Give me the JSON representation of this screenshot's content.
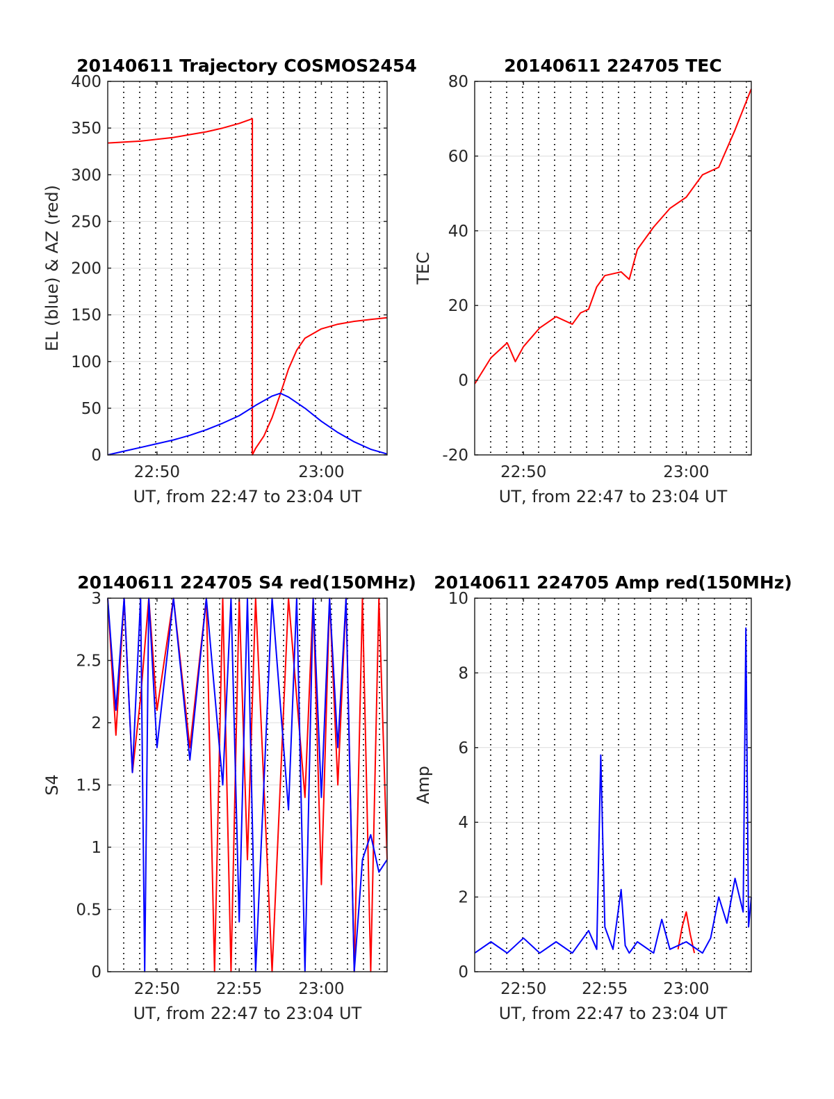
{
  "colors": {
    "red": "#ff0000",
    "blue": "#0000ff",
    "grid": "#dcdcdc",
    "axis": "#262626"
  },
  "chart_data": [
    {
      "type": "line",
      "title": "20140611 Trajectory COSMOS2454",
      "xlabel": "UT, from 22:47 to 23:04 UT",
      "ylabel": "EL (blue) & AZ (red)",
      "xlim": [
        "22:47:00",
        "23:04:00"
      ],
      "ylim": [
        0,
        400
      ],
      "xticks": [
        "22:50",
        "23:00"
      ],
      "yticks": [
        "0",
        "50",
        "100",
        "150",
        "200",
        "250",
        "300",
        "350",
        "400"
      ],
      "grid": "on",
      "series": [
        {
          "color": "red",
          "x": [
            "22:47:00",
            "22:48:00",
            "22:49:00",
            "22:50:00",
            "22:51:00",
            "22:52:00",
            "22:53:00",
            "22:54:00",
            "22:55:00",
            "22:55:48",
            "22:55:48",
            "22:56:00",
            "22:56:30",
            "22:57:00",
            "22:57:30",
            "22:58:00",
            "22:58:30",
            "22:59:00",
            "23:00:00",
            "23:01:00",
            "23:02:00",
            "23:03:00",
            "23:04:00"
          ],
          "values": [
            334,
            335,
            336,
            338,
            340,
            343,
            346,
            350,
            355,
            360,
            0,
            7,
            20,
            40,
            65,
            92,
            112,
            125,
            135,
            140,
            143,
            145,
            147
          ]
        },
        {
          "color": "blue",
          "x": [
            "22:47:00",
            "22:48:00",
            "22:49:00",
            "22:50:00",
            "22:51:00",
            "22:52:00",
            "22:53:00",
            "22:54:00",
            "22:55:00",
            "22:56:00",
            "22:57:00",
            "22:57:30",
            "22:58:00",
            "22:59:00",
            "23:00:00",
            "23:01:00",
            "23:02:00",
            "23:03:00",
            "23:04:00"
          ],
          "values": [
            0,
            4,
            8,
            12,
            16,
            21,
            27,
            34,
            42,
            53,
            63,
            66,
            62,
            50,
            36,
            24,
            14,
            6,
            1
          ]
        }
      ]
    },
    {
      "type": "line",
      "title": "20140611 224705 TEC",
      "xlabel": "UT, from 22:47 to 23:04 UT",
      "ylabel": "TEC",
      "xlim": [
        "22:47:00",
        "23:04:00"
      ],
      "ylim": [
        -20,
        80
      ],
      "xticks": [
        "22:50",
        "23:00"
      ],
      "yticks": [
        "-20",
        "0",
        "20",
        "40",
        "60",
        "80"
      ],
      "grid": "on",
      "series": [
        {
          "color": "red",
          "x": [
            "22:47:00",
            "22:48:00",
            "22:49:00",
            "22:49:30",
            "22:50:00",
            "22:51:00",
            "22:52:00",
            "22:53:00",
            "22:53:30",
            "22:54:00",
            "22:54:30",
            "22:55:00",
            "22:56:00",
            "22:56:30",
            "22:57:00",
            "22:58:00",
            "22:59:00",
            "23:00:00",
            "23:01:00",
            "23:02:00",
            "23:03:00",
            "23:04:00"
          ],
          "values": [
            -1,
            6,
            10,
            5,
            9,
            14,
            17,
            15,
            18,
            19,
            25,
            28,
            29,
            27,
            35,
            41,
            46,
            49,
            55,
            57,
            67,
            78
          ]
        }
      ]
    },
    {
      "type": "line",
      "title": "20140611 224705 S4 red(150MHz)",
      "xlabel": "UT, from 22:47 to 23:04 UT",
      "ylabel": "S4",
      "xlim": [
        "22:47:00",
        "23:04:00"
      ],
      "ylim": [
        0,
        3
      ],
      "xticks": [
        "22:50",
        "22:55",
        "23:00"
      ],
      "yticks": [
        "0",
        "0.5",
        "1",
        "1.5",
        "2",
        "2.5",
        "3"
      ],
      "grid": "on",
      "series": [
        {
          "color": "red",
          "x": [
            "22:47:00",
            "22:47:30",
            "22:48:00",
            "22:48:30",
            "22:49:00",
            "22:49:30",
            "22:50:00",
            "22:51:00",
            "22:52:00",
            "22:53:00",
            "22:53:30",
            "22:54:00",
            "22:54:30",
            "22:55:00",
            "22:55:30",
            "22:56:00",
            "22:57:00",
            "22:58:00",
            "22:59:00",
            "22:59:30",
            "23:00:00",
            "23:00:30",
            "23:01:00",
            "23:01:30",
            "23:02:00",
            "23:02:30",
            "23:03:00",
            "23:03:30",
            "23:04:00"
          ],
          "values": [
            3,
            1.9,
            3,
            1.6,
            2.2,
            3,
            2.1,
            3,
            1.8,
            3,
            0,
            3,
            0,
            3,
            0.9,
            3,
            0,
            3,
            1.4,
            3,
            0.7,
            3,
            1.5,
            3,
            0,
            3,
            0,
            3,
            0.9
          ]
        },
        {
          "color": "blue",
          "x": [
            "22:47:00",
            "22:47:30",
            "22:48:00",
            "22:48:30",
            "22:49:00",
            "22:49:15",
            "22:49:30",
            "22:50:00",
            "22:51:00",
            "22:52:00",
            "22:53:00",
            "22:54:00",
            "22:54:30",
            "22:55:00",
            "22:55:30",
            "22:56:00",
            "22:57:00",
            "22:58:00",
            "22:58:30",
            "22:59:00",
            "22:59:30",
            "23:00:00",
            "23:00:30",
            "23:01:00",
            "23:01:30",
            "23:02:00",
            "23:02:30",
            "23:03:00",
            "23:03:30",
            "23:04:00"
          ],
          "values": [
            3,
            2.1,
            3,
            1.6,
            3,
            0,
            3,
            1.8,
            3,
            1.7,
            3,
            1.5,
            3,
            0.4,
            3,
            0,
            3,
            1.3,
            3,
            0,
            3,
            1.4,
            3,
            1.8,
            3,
            0,
            0.9,
            1.1,
            0.8,
            0.9
          ]
        }
      ]
    },
    {
      "type": "line",
      "title": "20140611 224705 Amp red(150MHz)",
      "xlabel": "UT, from 22:47 to 23:04 UT",
      "ylabel": "Amp",
      "xlim": [
        "22:47:00",
        "23:04:00"
      ],
      "ylim": [
        0,
        10
      ],
      "xticks": [
        "22:50",
        "22:55",
        "23:00"
      ],
      "yticks": [
        "0",
        "2",
        "4",
        "6",
        "8",
        "10"
      ],
      "grid": "on",
      "series": [
        {
          "color": "red",
          "x": [
            "22:59:30",
            "22:59:45",
            "23:00:00",
            "23:00:15",
            "23:00:30"
          ],
          "values": [
            0.6,
            1.2,
            1.6,
            1.0,
            0.5
          ]
        },
        {
          "color": "blue",
          "x": [
            "22:47:00",
            "22:48:00",
            "22:49:00",
            "22:50:00",
            "22:51:00",
            "22:52:00",
            "22:53:00",
            "22:54:00",
            "22:54:30",
            "22:54:45",
            "22:55:00",
            "22:55:30",
            "22:56:00",
            "22:56:15",
            "22:56:30",
            "22:57:00",
            "22:58:00",
            "22:58:30",
            "22:59:00",
            "23:00:00",
            "23:01:00",
            "23:01:30",
            "23:02:00",
            "23:02:30",
            "23:03:00",
            "23:03:30",
            "23:03:40",
            "23:03:50",
            "23:04:00"
          ],
          "values": [
            0.5,
            0.8,
            0.5,
            0.9,
            0.5,
            0.8,
            0.5,
            1.1,
            0.6,
            5.8,
            1.2,
            0.6,
            2.2,
            0.7,
            0.5,
            0.8,
            0.5,
            1.4,
            0.6,
            0.8,
            0.5,
            0.9,
            2.0,
            1.3,
            2.5,
            1.6,
            9.2,
            1.2,
            2.0
          ]
        }
      ]
    }
  ]
}
